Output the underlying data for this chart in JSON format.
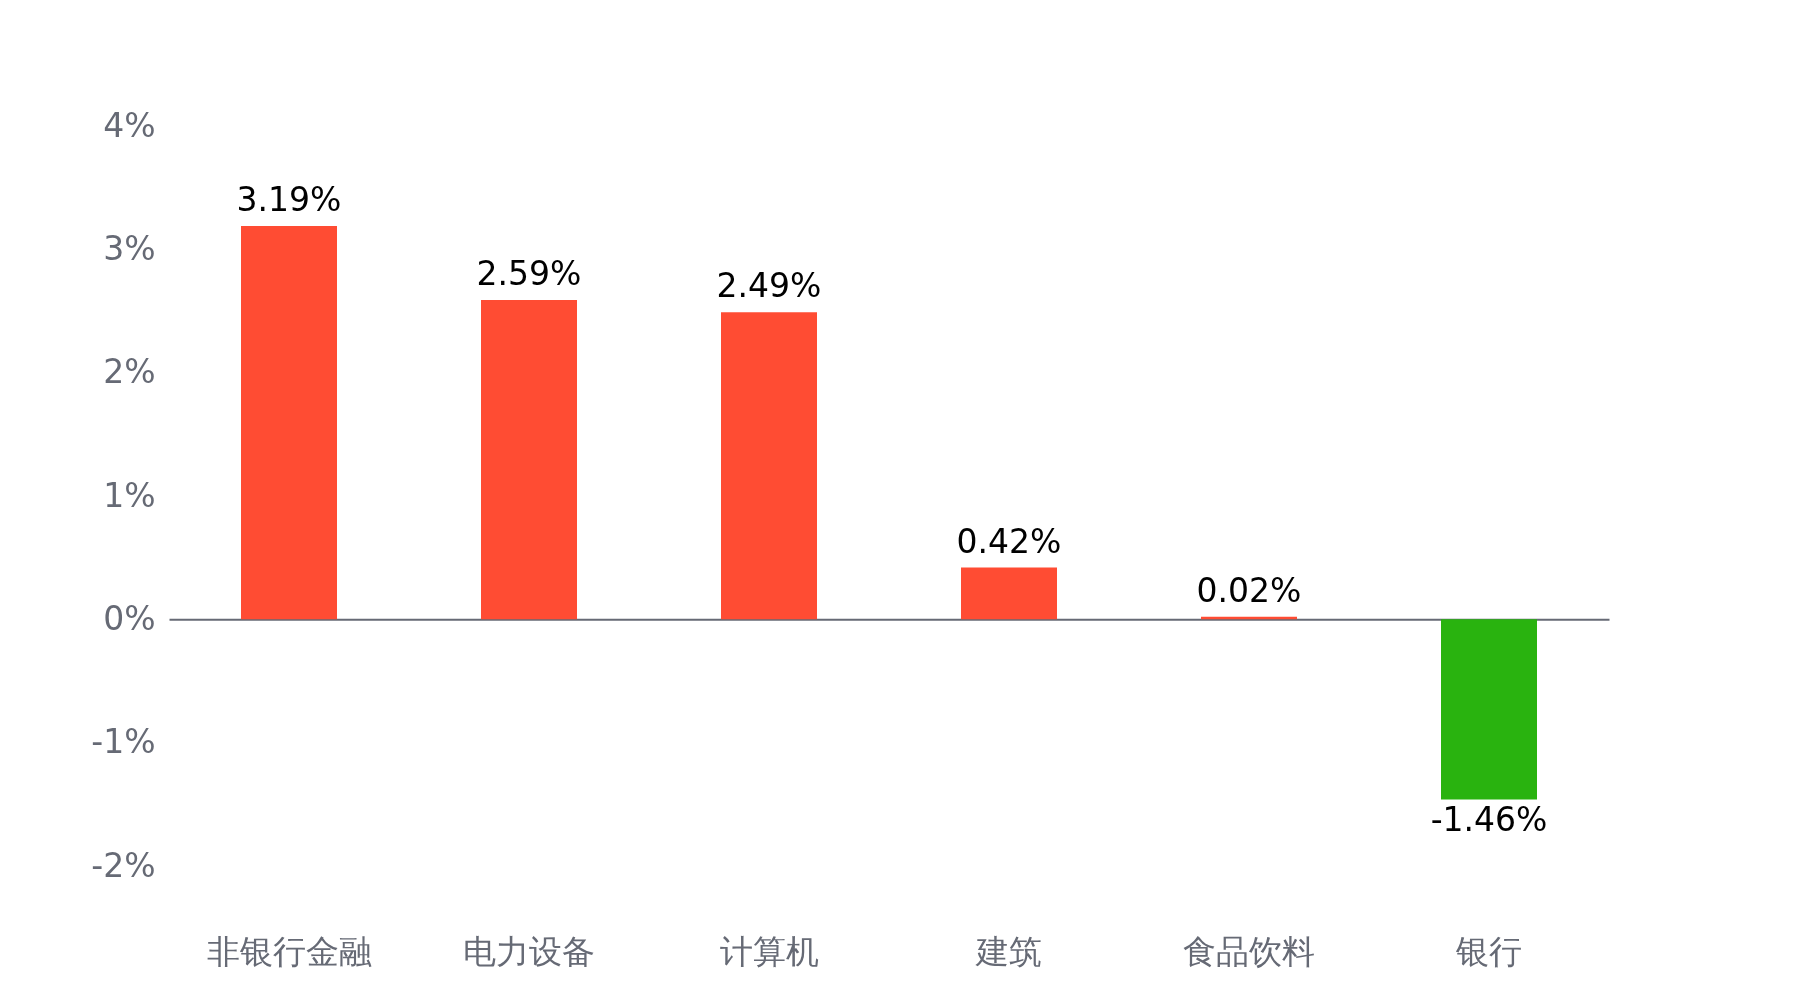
{
  "chart_data": {
    "type": "bar",
    "categories": [
      "非银行金融",
      "电力设备",
      "计算机",
      "建筑",
      "食品饮料",
      "银行"
    ],
    "values": [
      3.19,
      2.59,
      2.49,
      0.42,
      0.02,
      -1.46
    ],
    "colors": [
      "#ff4c33",
      "#ff4c33",
      "#ff4c33",
      "#ff4c33",
      "#ff4c33",
      "#29b30f"
    ],
    "value_labels": [
      "3.19%",
      "2.59%",
      "2.49%",
      "0.42%",
      "0.02%",
      "-1.46%"
    ],
    "ylim": [
      -2,
      4
    ],
    "yticks": [
      {
        "value": -2,
        "label": "-2%"
      },
      {
        "value": -1,
        "label": "-1%"
      },
      {
        "value": 0,
        "label": "0%"
      },
      {
        "value": 1,
        "label": "1%"
      },
      {
        "value": 2,
        "label": "2%"
      },
      {
        "value": 3,
        "label": "3%"
      },
      {
        "value": 4,
        "label": "4%"
      }
    ]
  }
}
